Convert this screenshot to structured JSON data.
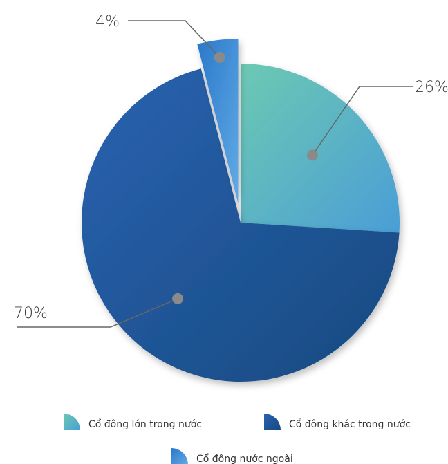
{
  "chart_data": {
    "type": "pie",
    "title": "",
    "unit": "%",
    "slices": [
      {
        "name": "Cổ đông lớn trong nước",
        "value": 26,
        "label": "26%",
        "color_start": "#6cc9b2",
        "color_end": "#4a9ed6"
      },
      {
        "name": "Cổ đông khác trong nước",
        "value": 70,
        "label": "70%",
        "color_start": "#2a62b0",
        "color_end": "#164a80"
      },
      {
        "name": "Cổ đông nước ngoài",
        "value": 4,
        "label": "4%",
        "color_start": "#2a78c9",
        "color_end": "#62abe6"
      }
    ],
    "exploded_slice": "Cổ đông nước ngoài",
    "legend_position": "bottom"
  }
}
